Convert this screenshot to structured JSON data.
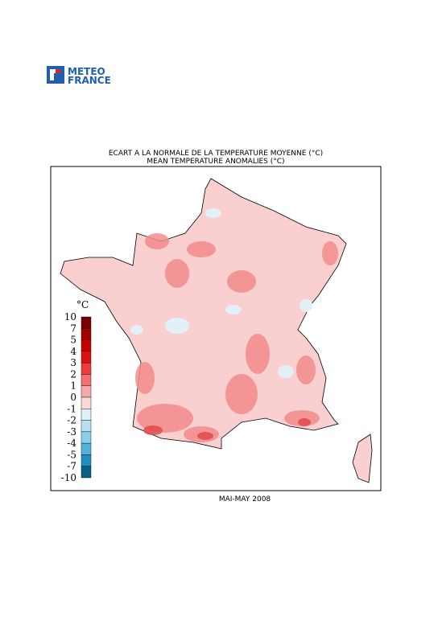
{
  "logo": {
    "line1": "METEO",
    "line2": "FRANCE"
  },
  "chart_data": {
    "type": "map",
    "title": "ECART A LA NORMALE DE LA TEMPERATURE MOYENNE (°C)",
    "subtitle": "MEAN TEMPERATURE ANOMALIES (°C)",
    "caption": "MAI-MAY 2008",
    "legend": {
      "unit": "°C",
      "levels": [
        10,
        7,
        5,
        4,
        3,
        2,
        1,
        0,
        -1,
        -2,
        -3,
        -4,
        -5,
        -7,
        -10
      ],
      "colors": [
        "#7a0000",
        "#a00000",
        "#c80000",
        "#e01010",
        "#ee3b3b",
        "#f27070",
        "#f7a8a8",
        "#fbd8d8",
        "#def0f8",
        "#b6e0f2",
        "#8acde8",
        "#52b2da",
        "#1e8fc0",
        "#0a5f82"
      ]
    }
  }
}
